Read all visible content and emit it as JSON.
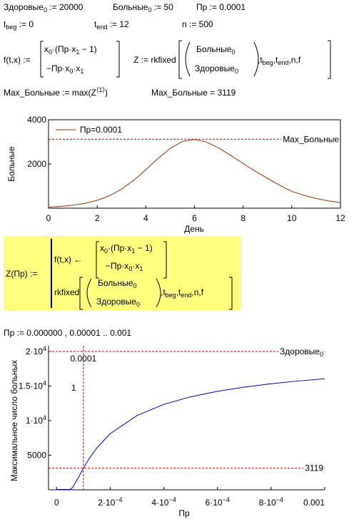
{
  "worksheet": {
    "row1": [
      [
        "Здоровые",
        "0",
        " := 20000"
      ],
      [
        "Больные",
        "0",
        " := 50"
      ],
      [
        "Пр := 0.0001"
      ]
    ],
    "row2": [
      [
        "t",
        "beg",
        " := 0"
      ],
      [
        "t",
        "end",
        " := 12"
      ],
      [
        "n := 500"
      ]
    ],
    "f_def": {
      "lhs": [
        "f(t,x) :="
      ],
      "m1": [
        "x",
        "0",
        "·(Пр·x",
        "1",
        " − 1)"
      ],
      "m2": [
        "−Пр·x",
        "0",
        "·x",
        "1"
      ]
    },
    "z_def": {
      "lhs": [
        "Z := rkfixed"
      ],
      "v1": [
        "Больные",
        "0"
      ],
      "v2": [
        "Здоровые",
        "0"
      ],
      "args": [
        ",t",
        "beg",
        ",t",
        "end",
        ",n,f"
      ]
    },
    "max_def": {
      "text": "Max_Больные := max(Z",
      "sup": "⟨1⟩",
      "close": ")"
    },
    "max_val": [
      "Max_Больные = 3119"
    ],
    "program": {
      "lhs": [
        "Z(Пр) :="
      ],
      "f": [
        "f(t,x) ←"
      ],
      "m1": [
        "x",
        "0",
        "·(Пр·x",
        "1",
        " − 1)"
      ],
      "m2": [
        "−Пр·x",
        "0",
        "·x",
        "1"
      ],
      "call": [
        "rkfixed"
      ],
      "v1": [
        "Больные",
        "0"
      ],
      "v2": [
        "Здоровые",
        "0"
      ],
      "args": [
        ",t",
        "beg",
        ",t",
        "end",
        ",n,f"
      ]
    },
    "range": [
      "Пр := 0.000000 , 0.00001 .. 0.001"
    ]
  },
  "chart_data": [
    {
      "type": "line",
      "x": [
        0,
        0.5,
        1,
        1.5,
        2,
        2.5,
        3,
        3.5,
        4,
        4.5,
        5,
        5.5,
        6,
        6.5,
        7,
        7.5,
        8,
        8.5,
        9,
        9.5,
        10,
        10.5,
        11,
        11.5,
        12
      ],
      "series": [
        {
          "name": "Пр=0.0001",
          "color": "#993300",
          "values": [
            50,
            82,
            135,
            220,
            355,
            560,
            860,
            1260,
            1740,
            2250,
            2700,
            3020,
            3110,
            2990,
            2720,
            2380,
            2020,
            1670,
            1350,
            1040,
            760,
            580,
            440,
            330,
            250
          ]
        }
      ],
      "xlim": [
        0,
        12
      ],
      "ylim": [
        0,
        4000
      ],
      "xticks": [
        0,
        2,
        4,
        6,
        8,
        10,
        12
      ],
      "yticks": [
        2000,
        4000
      ],
      "xlabel": "День",
      "ylabel": "Больные",
      "legend": "upper left",
      "markers": [
        {
          "axis": "y",
          "value": 3119,
          "label": "Max_Больные",
          "color": "#cc0000"
        }
      ]
    },
    {
      "type": "line",
      "x": [
        0,
        1e-05,
        2e-05,
        3e-05,
        4e-05,
        5e-05,
        6e-05,
        8e-05,
        0.0001,
        0.00012,
        0.00015,
        0.0002,
        0.0003,
        0.0004,
        0.0005,
        0.0006,
        0.0007,
        0.0008,
        0.0009,
        0.001
      ],
      "series": [
        {
          "color": "#0000cc",
          "values": [
            50,
            50,
            50,
            50,
            50,
            50,
            345,
            1675,
            3119,
            4421,
            6059,
            8119,
            10744,
            12352,
            13445,
            14241,
            14851,
            15334,
            15728,
            16054
          ]
        }
      ],
      "xlim": [
        -3e-05,
        0.001
      ],
      "ylim": [
        0,
        20000
      ],
      "xticks": [
        0,
        {
          "value": 0.0002,
          "label": "2·10",
          "sup": "−4"
        },
        {
          "value": 0.0004,
          "label": "4·10",
          "sup": "−4"
        },
        {
          "value": 0.0006,
          "label": "6·10",
          "sup": "−4"
        },
        {
          "value": 0.0008,
          "label": "8·10",
          "sup": "−4"
        },
        0.001
      ],
      "yticks": [
        5000,
        {
          "value": 10000,
          "label": "1·10",
          "sup": "4"
        },
        {
          "value": 15000,
          "label": "1.5·10",
          "sup": "4"
        },
        {
          "value": 20000,
          "label": "2·10",
          "sup": "4"
        }
      ],
      "xlabel": "Пр",
      "ylabel": "Максимальное число больных",
      "markers": [
        {
          "axis": "y",
          "value": 20000,
          "label": "Здоровые",
          "sub": "0",
          "color": "#cc0000"
        },
        {
          "axis": "y",
          "value": 3119,
          "label": "3119",
          "color": "#cc0000"
        },
        {
          "axis": "x",
          "value": 0.0001,
          "label": "0.0001",
          "color": "#cc0000"
        }
      ],
      "annotations": [
        "1"
      ]
    }
  ]
}
